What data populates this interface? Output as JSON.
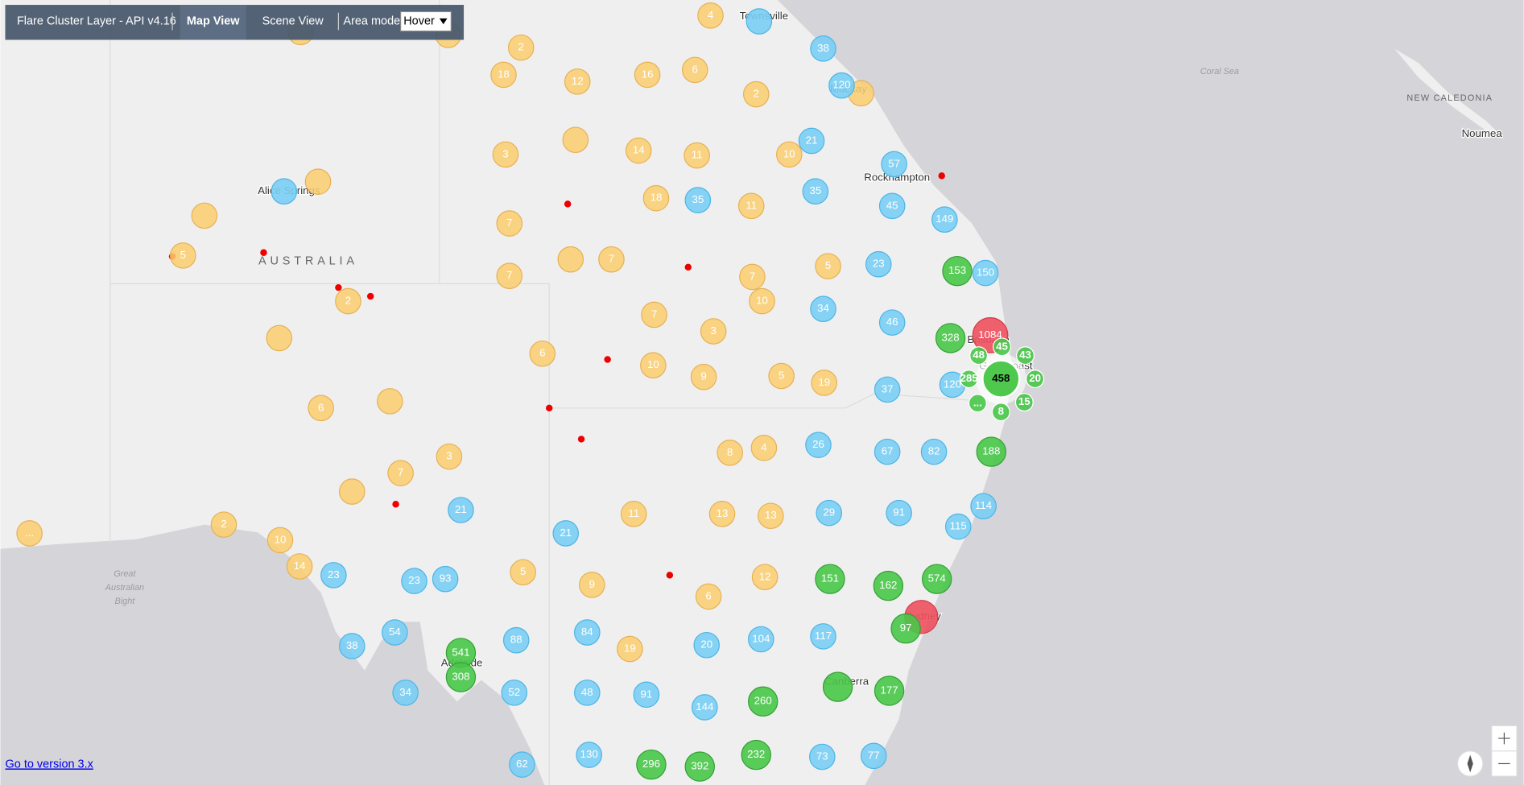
{
  "toolbar": {
    "title": "Flare Cluster Layer - API v4.16",
    "map_view": "Map View",
    "scene_view": "Scene View",
    "area_mode_label": "Area mode:",
    "area_mode": "Hover"
  },
  "map_labels": {
    "townsville": "Townsville",
    "mackay": "Mackay",
    "rockhampton": "Rockhampton",
    "alice_springs": "Alice Springs",
    "australia": "AUSTRALIA",
    "coral_sea": "Coral Sea",
    "new_caledonia": "NEW CALEDONIA",
    "noumea": "Noumea",
    "bight": [
      "Great",
      "Australian",
      "Bight"
    ],
    "brisbane": "Brisbane",
    "gold_coast": "Gold Coast",
    "sydney": "Sydney",
    "canberra": "Canberra",
    "adelaide": "Adelaide"
  },
  "clusters": [
    4,
    2,
    18,
    12,
    16,
    6,
    2,
    3,
    14,
    11,
    10,
    18,
    11,
    7,
    7,
    7,
    5,
    7,
    10,
    7,
    3,
    6,
    10,
    9,
    5,
    19,
    5,
    2,
    6,
    3,
    7,
    2,
    10,
    14,
    "...",
    5,
    9,
    6,
    12,
    19,
    11,
    13,
    13,
    8,
    4,
    38,
    120,
    21,
    57,
    35,
    35,
    45,
    149,
    23,
    150,
    34,
    46,
    37,
    120,
    26,
    67,
    82,
    114,
    115,
    29,
    91,
    21,
    21,
    23,
    23,
    93,
    54,
    38,
    34,
    88,
    84,
    20,
    104,
    117,
    52,
    48,
    91,
    144,
    62,
    130,
    73,
    77,
    153,
    328,
    188,
    151,
    162,
    574,
    97,
    541,
    308,
    260,
    177,
    296,
    392,
    232,
    1084
  ],
  "flare": {
    "center": 458,
    "flares": [
      45,
      43,
      20,
      15,
      8,
      "...",
      285,
      48
    ]
  },
  "link": "Go to version 3.x"
}
